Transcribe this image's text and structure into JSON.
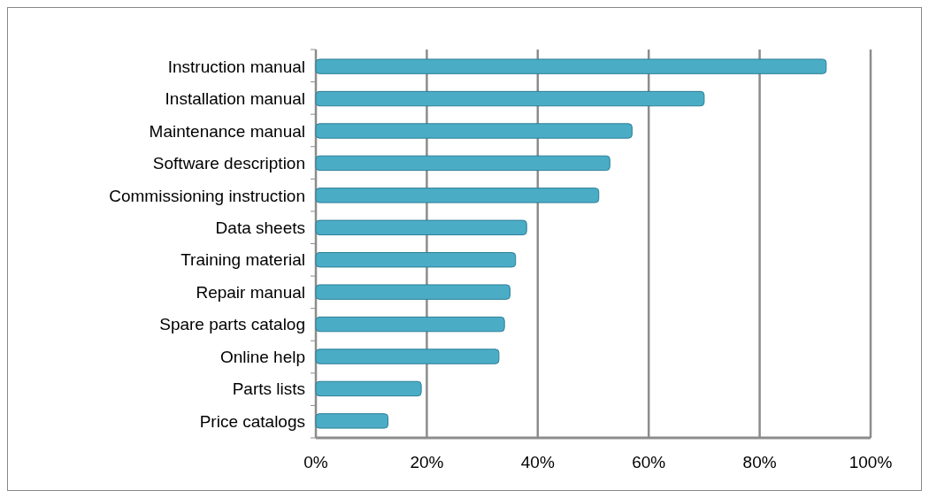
{
  "chart_data": {
    "type": "bar",
    "orientation": "horizontal",
    "categories": [
      "Instruction manual",
      "Installation manual",
      "Maintenance manual",
      "Software description",
      "Commissioning instruction",
      "Data sheets",
      "Training material",
      "Repair manual",
      "Spare parts catalog",
      "Online help",
      "Parts lists",
      "Price catalogs"
    ],
    "values": [
      92,
      70,
      57,
      53,
      51,
      38,
      36,
      35,
      34,
      33,
      19,
      13
    ],
    "color": "#4bacc6",
    "xlim": [
      0,
      100
    ],
    "xticks": [
      {
        "value": 0,
        "label": "0%"
      },
      {
        "value": 20,
        "label": "20%"
      },
      {
        "value": 40,
        "label": "40%"
      },
      {
        "value": 60,
        "label": "60%"
      },
      {
        "value": 80,
        "label": "80%"
      },
      {
        "value": 100,
        "label": "100%"
      }
    ],
    "grid": "x"
  }
}
